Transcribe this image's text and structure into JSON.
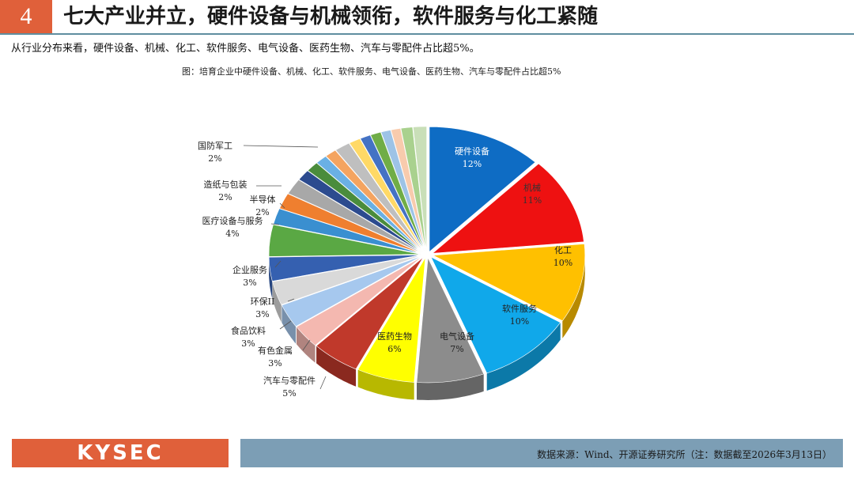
{
  "header": {
    "page_number": "4",
    "title": "七大产业并立，硬件设备与机械领衔，软件服务与化工紧随"
  },
  "summary": "从行业分布来看，硬件设备、机械、化工、软件服务、电气设备、医药生物、汽车与零配件占比超5%。",
  "figure": {
    "caption": "图：培育企业中硬件设备、机械、化工、软件服务、电气设备、医药生物、汽车与零配件占比超5%"
  },
  "footer": {
    "logo": "KYSEC",
    "source": "数据来源：Wind、开源证券研究所（注：数据截至2026年3月13日）"
  },
  "chart_data": {
    "type": "pie",
    "style": "3d-exploded",
    "start_angle_note": "first slice starts at 12 o'clock, clockwise",
    "slices": [
      {
        "label": "硬件设备",
        "value": 12,
        "display": "12%",
        "color": "#0e6cc4"
      },
      {
        "label": "机械",
        "value": 11,
        "display": "11%",
        "color": "#ee1111"
      },
      {
        "label": "化工",
        "value": 10,
        "display": "10%",
        "color": "#ffc000"
      },
      {
        "label": "软件服务",
        "value": 10,
        "display": "10%",
        "color": "#10a8ea"
      },
      {
        "label": "电气设备",
        "value": 7,
        "display": "7%",
        "color": "#8c8c8c"
      },
      {
        "label": "医药生物",
        "value": 6,
        "display": "6%",
        "color": "#ffff00"
      },
      {
        "label": "汽车与零配件",
        "value": 5,
        "display": "5%",
        "color": "#c0392b"
      },
      {
        "label": "有色金属",
        "value": 3,
        "display": "3%",
        "color": "#f4b8b0"
      },
      {
        "label": "食品饮料",
        "value": 3,
        "display": "3%",
        "color": "#a6c8ee"
      },
      {
        "label": "环保II",
        "value": 3,
        "display": "3%",
        "color": "#d9d9d9"
      },
      {
        "label": "企业服务",
        "value": 3,
        "display": "3%",
        "color": "#3560b0"
      },
      {
        "label": "医疗设备与服务",
        "value": 4,
        "display": "4%",
        "color": "#5aa844"
      },
      {
        "label": "半导体",
        "value": 2,
        "display": "2%",
        "color": "#3a8fd0"
      },
      {
        "label": "造纸与包装",
        "value": 2,
        "display": "2%",
        "color": "#ef7f2f"
      },
      {
        "label": "国防军工",
        "value": 2,
        "display": "2%",
        "color": "#a8a8a8"
      },
      {
        "label": "",
        "value": 1.4,
        "display": "",
        "color": "#2c4b8f"
      },
      {
        "label": "",
        "value": 1.3,
        "display": "",
        "color": "#4a8c3c"
      },
      {
        "label": "",
        "value": 1.2,
        "display": "",
        "color": "#6ab0e4"
      },
      {
        "label": "",
        "value": 1.2,
        "display": "",
        "color": "#f4a460"
      },
      {
        "label": "",
        "value": 1.6,
        "display": "",
        "color": "#bfbfbf"
      },
      {
        "label": "",
        "value": 1.2,
        "display": "",
        "color": "#ffd966"
      },
      {
        "label": "",
        "value": 1.1,
        "display": "",
        "color": "#4472c4"
      },
      {
        "label": "",
        "value": 1.1,
        "display": "",
        "color": "#70ad47"
      },
      {
        "label": "",
        "value": 1.0,
        "display": "",
        "color": "#9dc3e6"
      },
      {
        "label": "",
        "value": 1.0,
        "display": "",
        "color": "#f8cbad"
      },
      {
        "label": "",
        "value": 1.2,
        "display": "",
        "color": "#a9d18e"
      },
      {
        "label": "",
        "value": 1.4,
        "display": "",
        "color": "#c9dfb8"
      }
    ]
  }
}
